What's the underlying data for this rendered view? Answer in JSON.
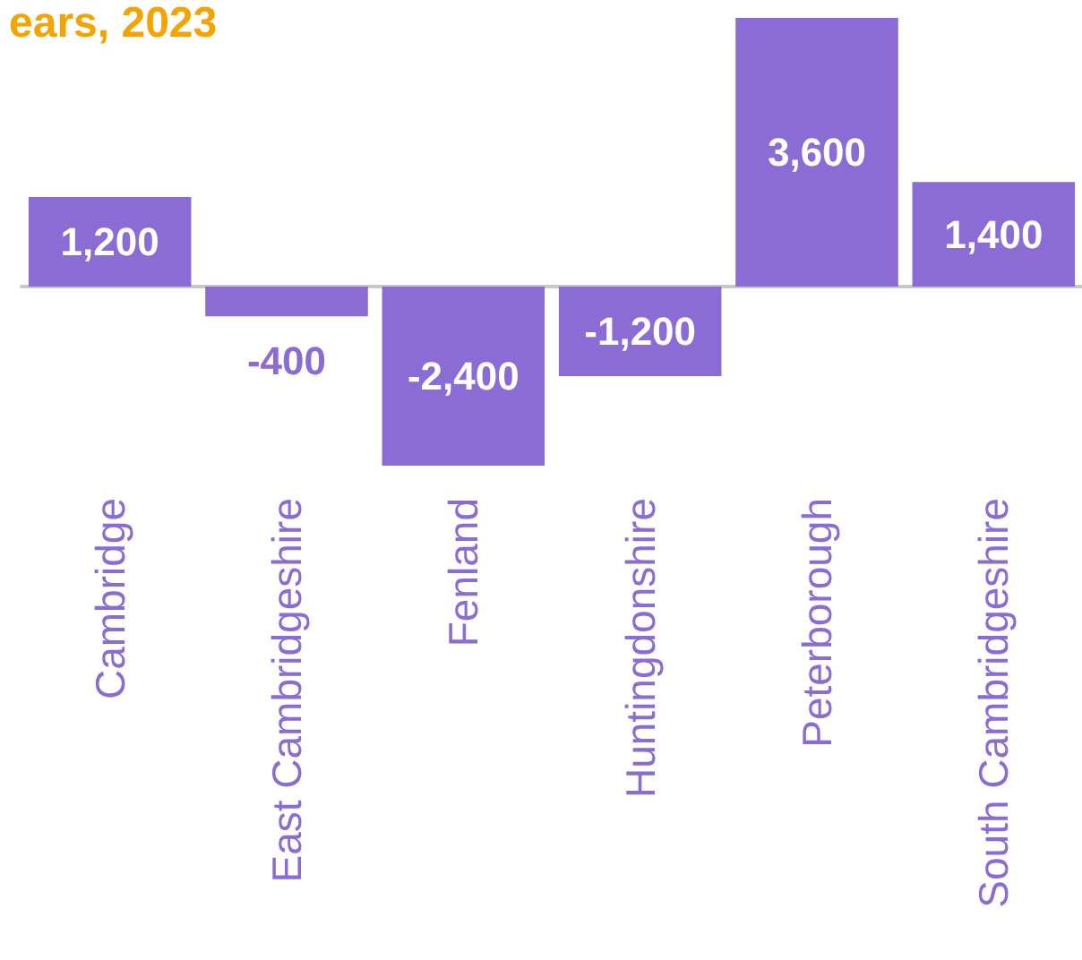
{
  "chart_data": {
    "type": "bar",
    "title": "ears, 2023",
    "categories": [
      "Cambridge",
      "East Cambridgeshire",
      "Fenland",
      "Huntingdonshire",
      "Peterborough",
      "South Cambridgeshire"
    ],
    "values": [
      1200,
      -400,
      -2400,
      -1200,
      3600,
      1400
    ],
    "value_labels": [
      "1,200",
      "-400",
      "-2,400",
      "-1,200",
      "3,600",
      "1,400"
    ],
    "color": "#8b6bd4",
    "ylim": [
      -2400,
      3600
    ]
  }
}
